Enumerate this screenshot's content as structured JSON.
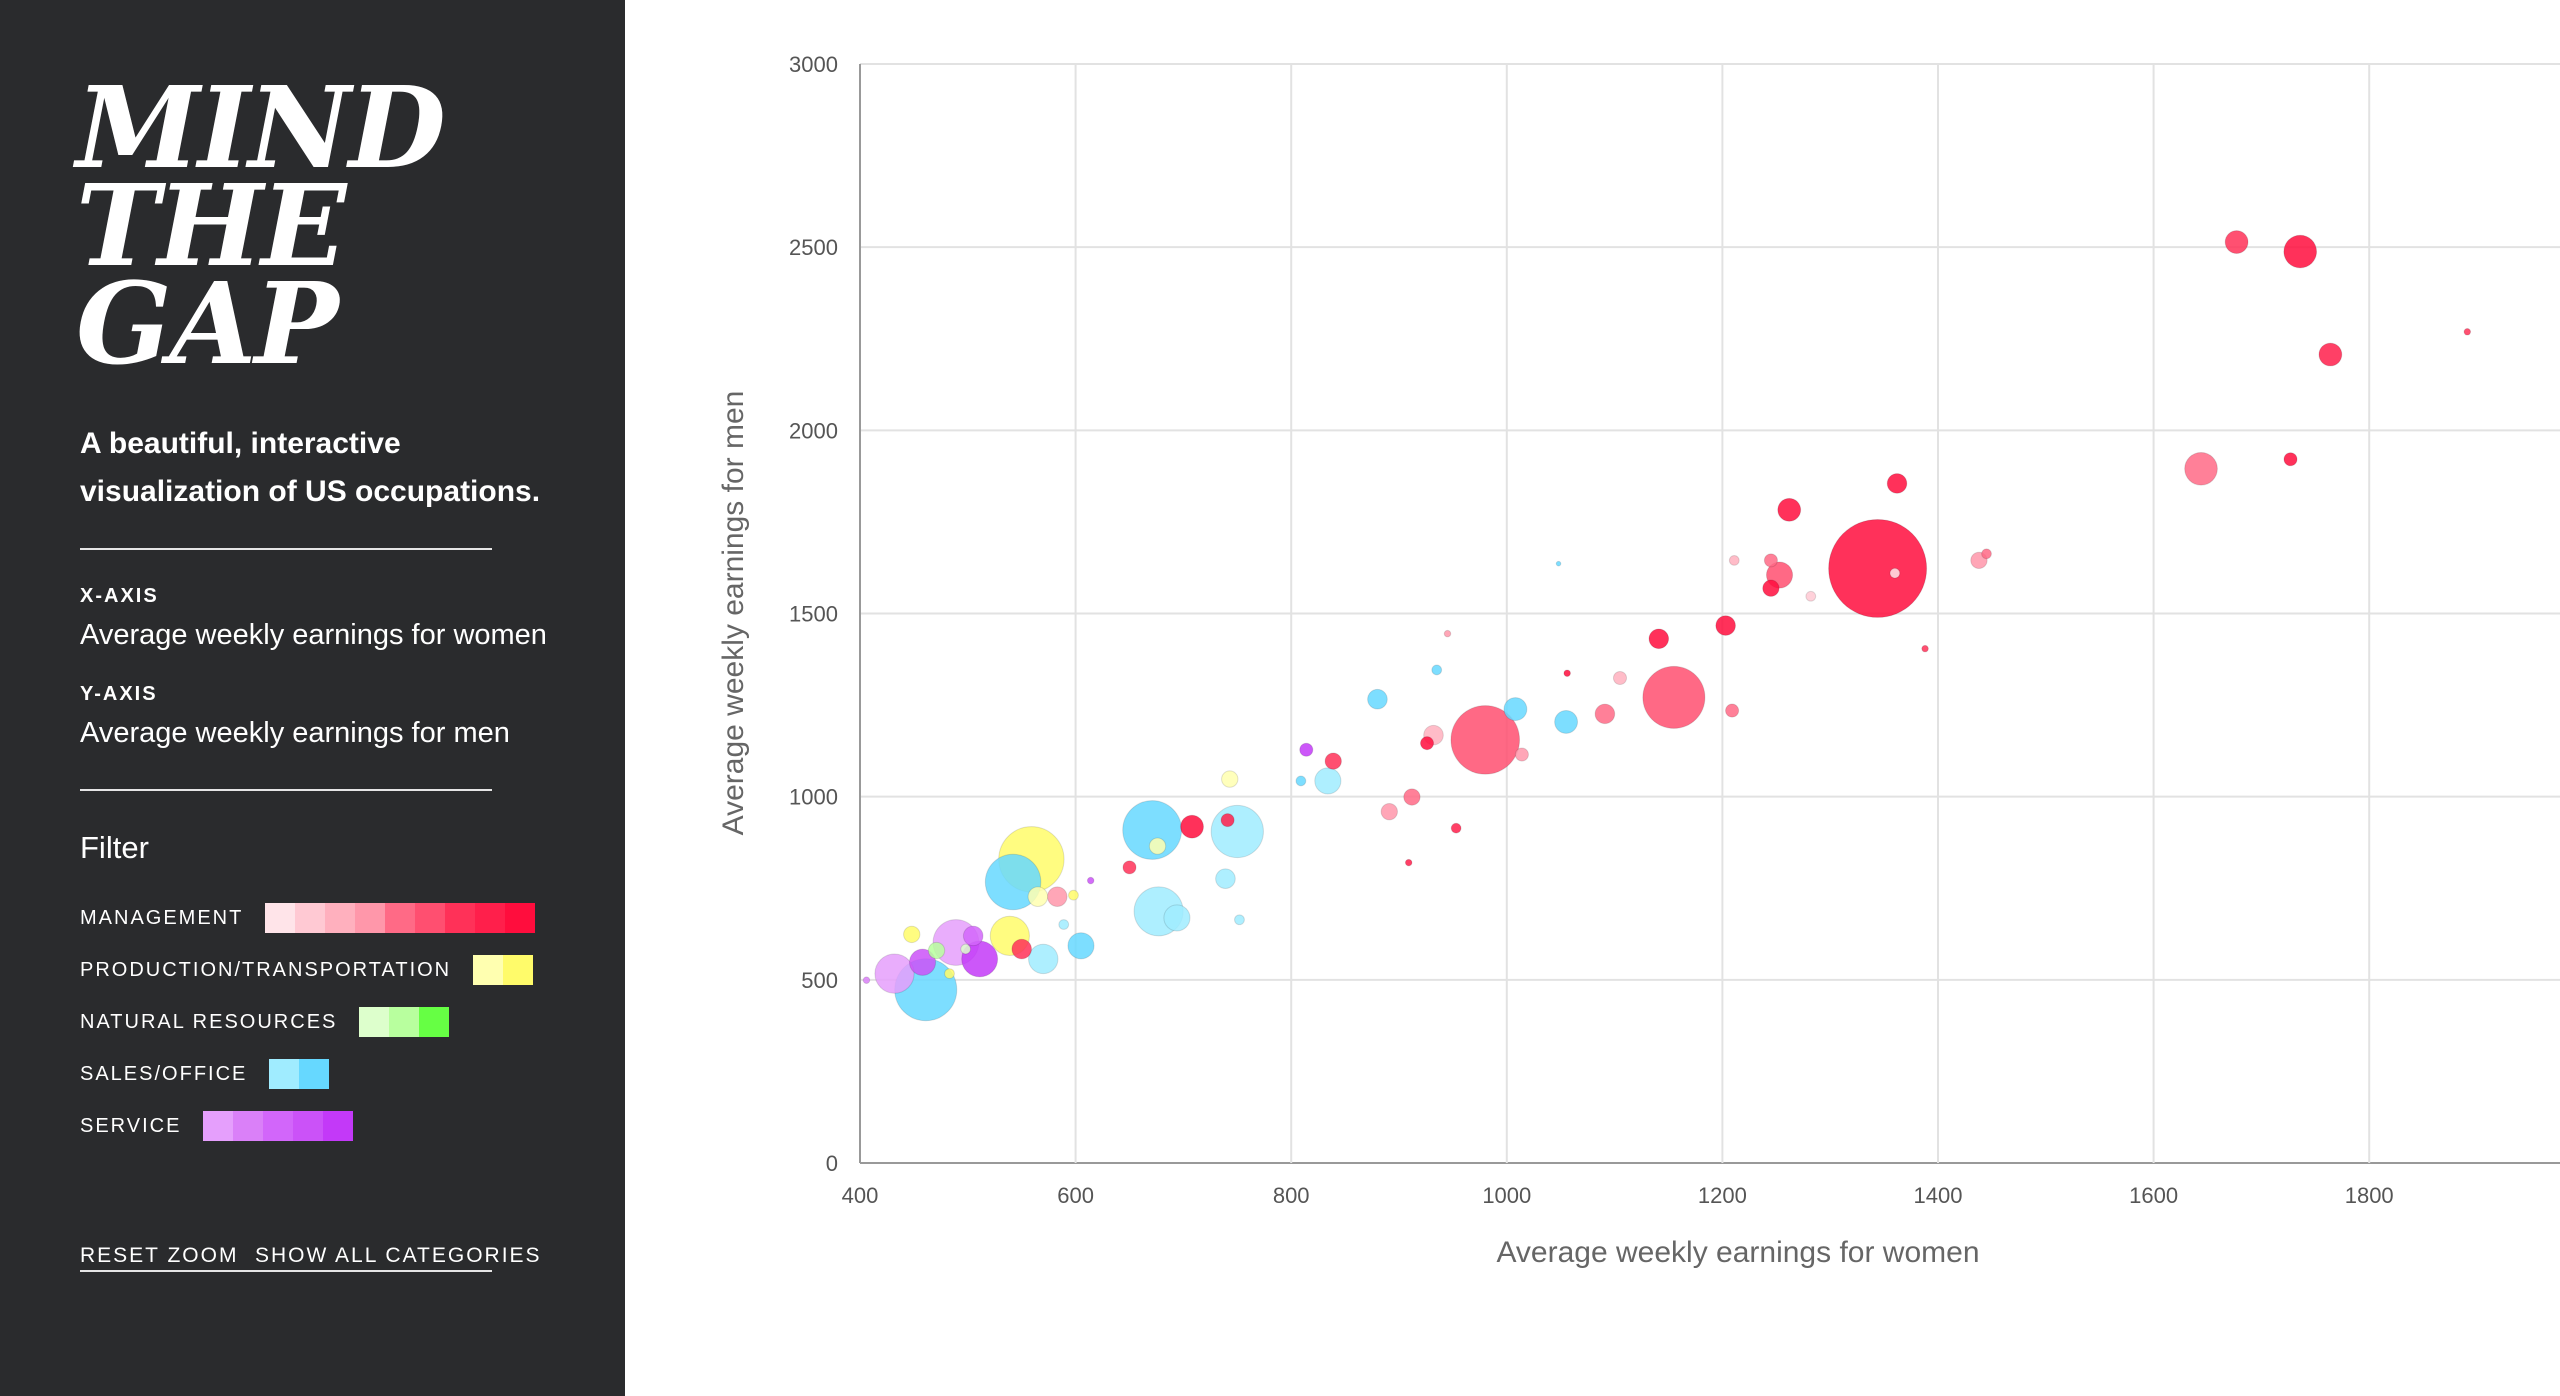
{
  "sidebar": {
    "logo_lines": [
      "MIND",
      "THE",
      "GAP"
    ],
    "subtitle": "A beautiful, interactive visualization of US occupations.",
    "x_axis_label": "X-AXIS",
    "x_axis_value": "Average weekly earnings for women",
    "y_axis_label": "Y-AXIS",
    "y_axis_value": "Average weekly earnings for men",
    "filter_title": "Filter",
    "categories": [
      {
        "label": "MANAGEMENT",
        "swatches": [
          "#ffe4e9",
          "#ffc9d3",
          "#ffb0be",
          "#ff97aa",
          "#ff6a86",
          "#ff4f70",
          "#ff3158",
          "#ff1f4b",
          "#ff0d3d"
        ]
      },
      {
        "label": "PRODUCTION/TRANSPORTATION",
        "swatches": [
          "#ffffb0",
          "#fffb6a"
        ]
      },
      {
        "label": "NATURAL RESOURCES",
        "swatches": [
          "#ddffcc",
          "#b8ff9e",
          "#66ff44"
        ]
      },
      {
        "label": "SALES/OFFICE",
        "swatches": [
          "#a0ecff",
          "#66d8ff"
        ]
      },
      {
        "label": "SERVICE",
        "swatches": [
          "#e59ffc",
          "#da80f8",
          "#d266fa",
          "#cb52f8",
          "#c339f8"
        ]
      }
    ],
    "reset_zoom": "RESET ZOOM",
    "show_all": "SHOW ALL CATEGORIES"
  },
  "chart_data": {
    "type": "scatter",
    "xlabel": "Average weekly earnings for women",
    "ylabel": "Average weekly earnings for men",
    "xlim": [
      400,
      1977
    ],
    "ylim": [
      0,
      3000
    ],
    "xticks": [
      400,
      600,
      800,
      1000,
      1200,
      1400,
      1600,
      1800
    ],
    "yticks": [
      0,
      500,
      1000,
      1500,
      2000,
      2500,
      3000
    ],
    "grid": true,
    "points": [
      {
        "c": 0,
        "s": 6,
        "x": 1677,
        "y": 2514,
        "size": 49
      },
      {
        "c": 0,
        "s": 8,
        "x": 1736,
        "y": 2488,
        "size": 100
      },
      {
        "c": 0,
        "s": 7,
        "x": 1764,
        "y": 2207,
        "size": 49
      },
      {
        "c": 0,
        "s": 6,
        "x": 1891,
        "y": 2269,
        "size": 4
      },
      {
        "c": 0,
        "s": 4,
        "x": 1644,
        "y": 1895,
        "size": 100
      },
      {
        "c": 0,
        "s": 8,
        "x": 1727,
        "y": 1921,
        "size": 16
      },
      {
        "c": 0,
        "s": 8,
        "x": 1344,
        "y": 1623,
        "size": 900
      },
      {
        "c": 0,
        "s": 8,
        "x": 1262,
        "y": 1783,
        "size": 49
      },
      {
        "c": 0,
        "s": 8,
        "x": 1362,
        "y": 1855,
        "size": 36
      },
      {
        "c": 0,
        "s": 5,
        "x": 1253,
        "y": 1605,
        "size": 64
      },
      {
        "c": 0,
        "s": 8,
        "x": 1245,
        "y": 1569,
        "size": 25
      },
      {
        "c": 0,
        "s": 4,
        "x": 1245,
        "y": 1645,
        "size": 16
      },
      {
        "c": 0,
        "s": 3,
        "x": 1438,
        "y": 1645,
        "size": 25
      },
      {
        "c": 0,
        "s": 4,
        "x": 1445,
        "y": 1663,
        "size": 9
      },
      {
        "c": 0,
        "s": 8,
        "x": 1203,
        "y": 1467,
        "size": 36
      },
      {
        "c": 0,
        "s": 8,
        "x": 1141,
        "y": 1431,
        "size": 36
      },
      {
        "c": 0,
        "s": 5,
        "x": 1155,
        "y": 1271,
        "size": 361
      },
      {
        "c": 0,
        "s": 4,
        "x": 1091,
        "y": 1226,
        "size": 36
      },
      {
        "c": 0,
        "s": 4,
        "x": 1209,
        "y": 1235,
        "size": 16
      },
      {
        "c": 0,
        "s": 5,
        "x": 980,
        "y": 1155,
        "size": 441
      },
      {
        "c": 0,
        "s": 2,
        "x": 932,
        "y": 1168,
        "size": 36
      },
      {
        "c": 0,
        "s": 8,
        "x": 926,
        "y": 1146,
        "size": 16
      },
      {
        "c": 0,
        "s": 8,
        "x": 1056,
        "y": 1337,
        "size": 4
      },
      {
        "c": 0,
        "s": 2,
        "x": 1105,
        "y": 1324,
        "size": 16
      },
      {
        "c": 0,
        "s": 3,
        "x": 1014,
        "y": 1115,
        "size": 16
      },
      {
        "c": 0,
        "s": 4,
        "x": 912,
        "y": 999,
        "size": 25
      },
      {
        "c": 0,
        "s": 3,
        "x": 891,
        "y": 959,
        "size": 25
      },
      {
        "c": 0,
        "s": 6,
        "x": 839,
        "y": 1097,
        "size": 25
      },
      {
        "c": 0,
        "s": 8,
        "x": 708,
        "y": 918,
        "size": 49
      },
      {
        "c": 0,
        "s": 7,
        "x": 741,
        "y": 936,
        "size": 16
      },
      {
        "c": 0,
        "s": 6,
        "x": 650,
        "y": 807,
        "size": 16
      },
      {
        "c": 0,
        "s": 3,
        "x": 583,
        "y": 727,
        "size": 36
      },
      {
        "c": 0,
        "s": 6,
        "x": 550,
        "y": 584,
        "size": 36
      },
      {
        "c": 0,
        "s": 3,
        "x": 945,
        "y": 1445,
        "size": 4
      },
      {
        "c": 0,
        "s": 2,
        "x": 1211,
        "y": 1645,
        "size": 9
      },
      {
        "c": 0,
        "s": 7,
        "x": 953,
        "y": 914,
        "size": 9
      },
      {
        "c": 0,
        "s": 1,
        "x": 1282,
        "y": 1547,
        "size": 9
      },
      {
        "c": 0,
        "s": 6,
        "x": 1388,
        "y": 1404,
        "size": 4
      },
      {
        "c": 0,
        "s": 7,
        "x": 909,
        "y": 820,
        "size": 4
      },
      {
        "c": 0,
        "s": 0,
        "x": 1360,
        "y": 1610,
        "size": 9
      },
      {
        "c": 3,
        "s": 1,
        "x": 461,
        "y": 473,
        "size": 361
      },
      {
        "c": 3,
        "s": 1,
        "x": 542,
        "y": 767,
        "size": 289
      },
      {
        "c": 3,
        "s": 1,
        "x": 671,
        "y": 909,
        "size": 324
      },
      {
        "c": 3,
        "s": 0,
        "x": 750,
        "y": 905,
        "size": 256
      },
      {
        "c": 3,
        "s": 0,
        "x": 677,
        "y": 687,
        "size": 225
      },
      {
        "c": 3,
        "s": 0,
        "x": 694,
        "y": 669,
        "size": 64
      },
      {
        "c": 3,
        "s": 0,
        "x": 570,
        "y": 557,
        "size": 81
      },
      {
        "c": 3,
        "s": 1,
        "x": 605,
        "y": 593,
        "size": 64
      },
      {
        "c": 3,
        "s": 0,
        "x": 739,
        "y": 776,
        "size": 36
      },
      {
        "c": 3,
        "s": 0,
        "x": 834,
        "y": 1043,
        "size": 64
      },
      {
        "c": 3,
        "s": 1,
        "x": 880,
        "y": 1266,
        "size": 36
      },
      {
        "c": 3,
        "s": 1,
        "x": 1008,
        "y": 1239,
        "size": 49
      },
      {
        "c": 3,
        "s": 1,
        "x": 1055,
        "y": 1204,
        "size": 49
      },
      {
        "c": 3,
        "s": 1,
        "x": 935,
        "y": 1346,
        "size": 9
      },
      {
        "c": 3,
        "s": 1,
        "x": 809,
        "y": 1043,
        "size": 9
      },
      {
        "c": 3,
        "s": 1,
        "x": 1048,
        "y": 1636,
        "size": 2
      },
      {
        "c": 3,
        "s": 0,
        "x": 589,
        "y": 651,
        "size": 9
      },
      {
        "c": 3,
        "s": 0,
        "x": 752,
        "y": 664,
        "size": 9
      },
      {
        "c": 1,
        "s": 1,
        "x": 559,
        "y": 829,
        "size": 400
      },
      {
        "c": 1,
        "s": 1,
        "x": 539,
        "y": 620,
        "size": 144
      },
      {
        "c": 1,
        "s": 0,
        "x": 565,
        "y": 727,
        "size": 36
      },
      {
        "c": 1,
        "s": 0,
        "x": 743,
        "y": 1048,
        "size": 25
      },
      {
        "c": 1,
        "s": 0,
        "x": 676,
        "y": 865,
        "size": 25
      },
      {
        "c": 1,
        "s": 1,
        "x": 448,
        "y": 624,
        "size": 25
      },
      {
        "c": 1,
        "s": 1,
        "x": 483,
        "y": 517,
        "size": 9
      },
      {
        "c": 1,
        "s": 1,
        "x": 598,
        "y": 731,
        "size": 9
      },
      {
        "c": 4,
        "s": 0,
        "x": 432,
        "y": 517,
        "size": 144
      },
      {
        "c": 4,
        "s": 0,
        "x": 489,
        "y": 602,
        "size": 196
      },
      {
        "c": 4,
        "s": 4,
        "x": 511,
        "y": 557,
        "size": 121
      },
      {
        "c": 4,
        "s": 3,
        "x": 458,
        "y": 548,
        "size": 64
      },
      {
        "c": 4,
        "s": 2,
        "x": 505,
        "y": 620,
        "size": 36
      },
      {
        "c": 4,
        "s": 4,
        "x": 814,
        "y": 1128,
        "size": 16
      },
      {
        "c": 4,
        "s": 1,
        "x": 406,
        "y": 499,
        "size": 4
      },
      {
        "c": 4,
        "s": 3,
        "x": 614,
        "y": 771,
        "size": 4
      },
      {
        "c": 2,
        "s": 1,
        "x": 471,
        "y": 580,
        "size": 25
      },
      {
        "c": 2,
        "s": 0,
        "x": 498,
        "y": 584,
        "size": 9
      }
    ]
  }
}
